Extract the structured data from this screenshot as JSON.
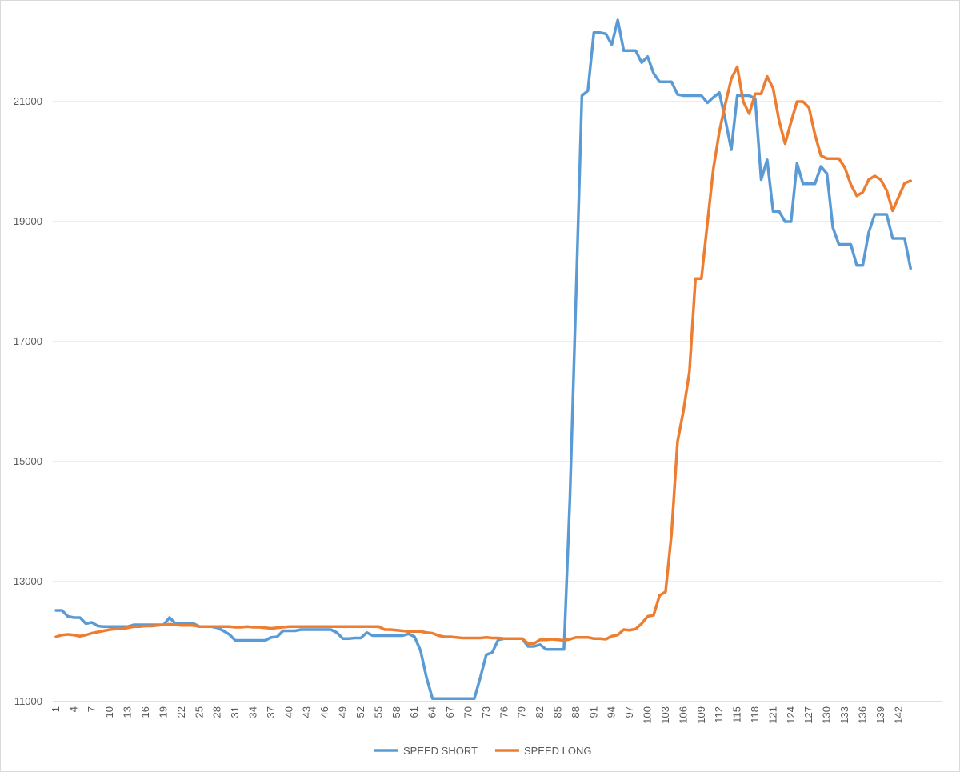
{
  "chart_data": {
    "type": "line",
    "categories": [
      "1",
      null,
      null,
      "4",
      null,
      null,
      "7",
      null,
      null,
      "10",
      null,
      null,
      "13",
      null,
      null,
      "16",
      null,
      null,
      "19",
      null,
      null,
      "22",
      null,
      null,
      "25",
      null,
      null,
      "28",
      null,
      null,
      "31",
      null,
      null,
      "34",
      null,
      null,
      "37",
      null,
      null,
      "40",
      null,
      null,
      "43",
      null,
      null,
      "46",
      null,
      null,
      "49",
      null,
      null,
      "52",
      null,
      null,
      "55",
      null,
      null,
      "58",
      null,
      null,
      "61",
      null,
      null,
      "64",
      null,
      null,
      "67",
      null,
      null,
      "70",
      null,
      null,
      "73",
      null,
      null,
      "76",
      null,
      null,
      "79",
      null,
      null,
      "82",
      null,
      null,
      "85",
      null,
      null,
      "88",
      null,
      null,
      "91",
      null,
      null,
      "94",
      null,
      null,
      "97",
      null,
      null,
      "100",
      null,
      null,
      "103",
      null,
      null,
      "106",
      null,
      null,
      "109",
      null,
      null,
      "112",
      null,
      null,
      "115",
      null,
      null,
      "118",
      null,
      null,
      "121",
      null,
      null,
      "124",
      null,
      null,
      "127",
      null,
      null,
      "130",
      null,
      null,
      "133",
      null,
      null,
      "136",
      null,
      null,
      "139",
      null,
      null,
      "142",
      null,
      null
    ],
    "series": [
      {
        "name": "SPEED SHORT",
        "color": "#5b9bd5",
        "values": [
          12520,
          12520,
          12420,
          12400,
          12400,
          12300,
          12320,
          12260,
          12250,
          12250,
          12250,
          12250,
          12250,
          12280,
          12280,
          12280,
          12280,
          12280,
          12280,
          12400,
          12300,
          12300,
          12300,
          12300,
          12250,
          12250,
          12250,
          12230,
          12180,
          12120,
          12020,
          12020,
          12020,
          12020,
          12020,
          12020,
          12070,
          12080,
          12180,
          12180,
          12180,
          12200,
          12200,
          12200,
          12200,
          12200,
          12200,
          12150,
          12050,
          12050,
          12060,
          12060,
          12150,
          12100,
          12100,
          12100,
          12100,
          12100,
          12100,
          12130,
          12080,
          11850,
          11400,
          11050,
          11050,
          11050,
          11050,
          11050,
          11050,
          11050,
          11050,
          11400,
          11780,
          11820,
          12030,
          12050,
          12050,
          12050,
          12050,
          11920,
          11920,
          11950,
          11870,
          11870,
          11870,
          11870,
          14400,
          17700,
          21100,
          21180,
          22150,
          22150,
          22130,
          21950,
          22360,
          21850,
          21850,
          21850,
          21650,
          21750,
          21470,
          21330,
          21330,
          21330,
          21120,
          21100,
          21100,
          21100,
          21100,
          20980,
          21070,
          21150,
          20700,
          20200,
          21100,
          21100,
          21100,
          21050,
          19700,
          20030,
          19170,
          19170,
          19000,
          19000,
          19970,
          19630,
          19630,
          19630,
          19920,
          19800,
          18900,
          18620,
          18620,
          18620,
          18270,
          18270,
          18820,
          19120,
          19120,
          19120,
          18720,
          18720,
          18720,
          18220
        ]
      },
      {
        "name": "SPEED LONG",
        "color": "#ed7d31",
        "values": [
          12080,
          12110,
          12120,
          12110,
          12090,
          12110,
          12140,
          12160,
          12180,
          12200,
          12210,
          12210,
          12230,
          12250,
          12250,
          12260,
          12260,
          12270,
          12280,
          12290,
          12280,
          12270,
          12270,
          12270,
          12250,
          12250,
          12250,
          12250,
          12250,
          12250,
          12240,
          12240,
          12250,
          12240,
          12240,
          12230,
          12220,
          12230,
          12240,
          12250,
          12250,
          12250,
          12250,
          12250,
          12250,
          12250,
          12250,
          12250,
          12250,
          12250,
          12250,
          12250,
          12250,
          12250,
          12250,
          12200,
          12200,
          12190,
          12180,
          12170,
          12170,
          12170,
          12150,
          12140,
          12100,
          12080,
          12080,
          12070,
          12060,
          12060,
          12060,
          12060,
          12070,
          12060,
          12060,
          12050,
          12050,
          12050,
          12050,
          11970,
          11970,
          12030,
          12030,
          12040,
          12030,
          12020,
          12040,
          12070,
          12070,
          12070,
          12050,
          12050,
          12040,
          12090,
          12110,
          12200,
          12190,
          12210,
          12300,
          12420,
          12440,
          12770,
          12830,
          13800,
          15330,
          15850,
          16500,
          18050,
          18050,
          18970,
          19880,
          20500,
          20960,
          21380,
          21580,
          21000,
          20800,
          21130,
          21130,
          21420,
          21220,
          20680,
          20300,
          20660,
          21000,
          21000,
          20900,
          20450,
          20100,
          20050,
          20050,
          20050,
          19900,
          19620,
          19430,
          19490,
          19700,
          19760,
          19700,
          19520,
          19180,
          19410,
          19640,
          19680
        ]
      }
    ],
    "ylim": [
      11000,
      22600
    ],
    "yticks": [
      11000,
      13000,
      15000,
      17000,
      19000,
      21000
    ],
    "grid": true,
    "legend": "bottom"
  }
}
